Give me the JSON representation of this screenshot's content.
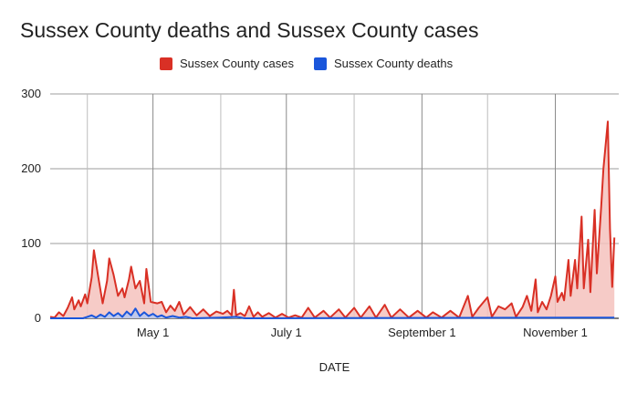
{
  "chart_data": {
    "type": "area",
    "title": "Sussex County deaths and Sussex County cases",
    "xlabel": "DATE",
    "ylabel": "",
    "ylim": [
      0,
      300
    ],
    "yticks": [
      "0",
      "100",
      "200",
      "300"
    ],
    "xticks": [
      "May 1",
      "July 1",
      "September 1",
      "November 1"
    ],
    "x_range": [
      "2020-03-15",
      "2020-11-30"
    ],
    "grid": true,
    "legend_position": "top",
    "series": [
      {
        "name": "Sussex County cases",
        "color": "#d93025",
        "fill": "#f4c2bd",
        "points": [
          [
            "2020-03-15",
            2
          ],
          [
            "2020-03-17",
            1
          ],
          [
            "2020-03-19",
            8
          ],
          [
            "2020-03-21",
            3
          ],
          [
            "2020-03-23",
            14
          ],
          [
            "2020-03-25",
            28
          ],
          [
            "2020-03-26",
            12
          ],
          [
            "2020-03-28",
            24
          ],
          [
            "2020-03-29",
            16
          ],
          [
            "2020-03-31",
            32
          ],
          [
            "2020-04-01",
            20
          ],
          [
            "2020-04-03",
            55
          ],
          [
            "2020-04-04",
            91
          ],
          [
            "2020-04-06",
            55
          ],
          [
            "2020-04-08",
            20
          ],
          [
            "2020-04-10",
            50
          ],
          [
            "2020-04-11",
            80
          ],
          [
            "2020-04-13",
            58
          ],
          [
            "2020-04-15",
            30
          ],
          [
            "2020-04-17",
            40
          ],
          [
            "2020-04-18",
            28
          ],
          [
            "2020-04-20",
            52
          ],
          [
            "2020-04-21",
            69
          ],
          [
            "2020-04-23",
            40
          ],
          [
            "2020-04-25",
            50
          ],
          [
            "2020-04-27",
            20
          ],
          [
            "2020-04-28",
            66
          ],
          [
            "2020-04-30",
            22
          ],
          [
            "2020-05-03",
            20
          ],
          [
            "2020-05-05",
            22
          ],
          [
            "2020-05-07",
            8
          ],
          [
            "2020-05-09",
            17
          ],
          [
            "2020-05-11",
            10
          ],
          [
            "2020-05-13",
            22
          ],
          [
            "2020-05-15",
            5
          ],
          [
            "2020-05-18",
            15
          ],
          [
            "2020-05-21",
            4
          ],
          [
            "2020-05-24",
            12
          ],
          [
            "2020-05-27",
            3
          ],
          [
            "2020-05-30",
            9
          ],
          [
            "2020-06-02",
            6
          ],
          [
            "2020-06-04",
            10
          ],
          [
            "2020-06-06",
            4
          ],
          [
            "2020-06-07",
            38
          ],
          [
            "2020-06-08",
            4
          ],
          [
            "2020-06-10",
            7
          ],
          [
            "2020-06-12",
            3
          ],
          [
            "2020-06-14",
            16
          ],
          [
            "2020-06-16",
            2
          ],
          [
            "2020-06-18",
            8
          ],
          [
            "2020-06-20",
            2
          ],
          [
            "2020-06-23",
            7
          ],
          [
            "2020-06-26",
            1
          ],
          [
            "2020-06-29",
            6
          ],
          [
            "2020-07-02",
            1
          ],
          [
            "2020-07-05",
            4
          ],
          [
            "2020-07-08",
            1
          ],
          [
            "2020-07-11",
            14
          ],
          [
            "2020-07-14",
            1
          ],
          [
            "2020-07-18",
            10
          ],
          [
            "2020-07-21",
            1
          ],
          [
            "2020-07-25",
            12
          ],
          [
            "2020-07-28",
            1
          ],
          [
            "2020-08-01",
            14
          ],
          [
            "2020-08-04",
            1
          ],
          [
            "2020-08-08",
            16
          ],
          [
            "2020-08-11",
            1
          ],
          [
            "2020-08-15",
            18
          ],
          [
            "2020-08-18",
            1
          ],
          [
            "2020-08-22",
            12
          ],
          [
            "2020-08-26",
            1
          ],
          [
            "2020-08-30",
            10
          ],
          [
            "2020-09-03",
            1
          ],
          [
            "2020-09-06",
            8
          ],
          [
            "2020-09-10",
            1
          ],
          [
            "2020-09-14",
            10
          ],
          [
            "2020-09-18",
            1
          ],
          [
            "2020-09-22",
            30
          ],
          [
            "2020-09-24",
            2
          ],
          [
            "2020-09-27",
            14
          ],
          [
            "2020-10-01",
            28
          ],
          [
            "2020-10-03",
            2
          ],
          [
            "2020-10-06",
            16
          ],
          [
            "2020-10-09",
            12
          ],
          [
            "2020-10-12",
            20
          ],
          [
            "2020-10-14",
            2
          ],
          [
            "2020-10-17",
            15
          ],
          [
            "2020-10-19",
            30
          ],
          [
            "2020-10-21",
            10
          ],
          [
            "2020-10-23",
            52
          ],
          [
            "2020-10-24",
            8
          ],
          [
            "2020-10-26",
            22
          ],
          [
            "2020-10-28",
            12
          ],
          [
            "2020-10-30",
            30
          ],
          [
            "2020-11-01",
            56
          ],
          [
            "2020-11-02",
            22
          ],
          [
            "2020-11-04",
            34
          ],
          [
            "2020-11-05",
            24
          ],
          [
            "2020-11-07",
            78
          ],
          [
            "2020-11-08",
            30
          ],
          [
            "2020-11-10",
            78
          ],
          [
            "2020-11-11",
            40
          ],
          [
            "2020-11-13",
            136
          ],
          [
            "2020-11-14",
            40
          ],
          [
            "2020-11-16",
            105
          ],
          [
            "2020-11-17",
            35
          ],
          [
            "2020-11-19",
            145
          ],
          [
            "2020-11-20",
            60
          ],
          [
            "2020-11-22",
            150
          ],
          [
            "2020-11-23",
            200
          ],
          [
            "2020-11-25",
            263
          ],
          [
            "2020-11-26",
            120
          ],
          [
            "2020-11-27",
            42
          ],
          [
            "2020-11-28",
            108
          ]
        ]
      },
      {
        "name": "Sussex County deaths",
        "color": "#1a56db",
        "fill": "#b7c9f0",
        "points": [
          [
            "2020-03-15",
            0
          ],
          [
            "2020-03-30",
            0
          ],
          [
            "2020-04-01",
            2
          ],
          [
            "2020-04-03",
            4
          ],
          [
            "2020-04-05",
            1
          ],
          [
            "2020-04-07",
            5
          ],
          [
            "2020-04-09",
            2
          ],
          [
            "2020-04-11",
            8
          ],
          [
            "2020-04-13",
            3
          ],
          [
            "2020-04-15",
            7
          ],
          [
            "2020-04-17",
            2
          ],
          [
            "2020-04-19",
            9
          ],
          [
            "2020-04-21",
            4
          ],
          [
            "2020-04-23",
            13
          ],
          [
            "2020-04-25",
            3
          ],
          [
            "2020-04-27",
            8
          ],
          [
            "2020-04-29",
            3
          ],
          [
            "2020-05-01",
            6
          ],
          [
            "2020-05-03",
            2
          ],
          [
            "2020-05-05",
            4
          ],
          [
            "2020-05-07",
            1
          ],
          [
            "2020-05-10",
            3
          ],
          [
            "2020-05-13",
            1
          ],
          [
            "2020-05-16",
            2
          ],
          [
            "2020-05-19",
            0
          ],
          [
            "2020-06-01",
            1
          ],
          [
            "2020-06-08",
            2
          ],
          [
            "2020-06-12",
            0
          ],
          [
            "2020-11-28",
            1
          ]
        ]
      }
    ]
  }
}
